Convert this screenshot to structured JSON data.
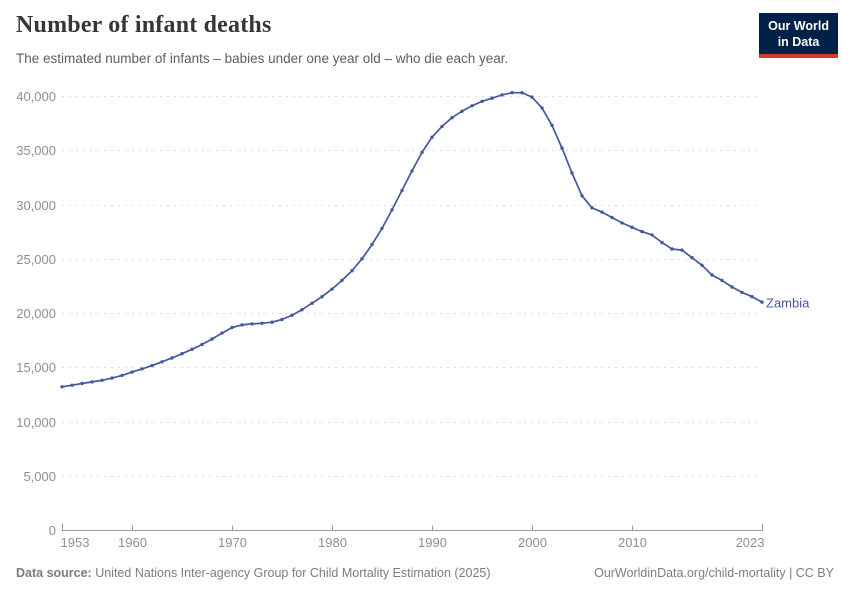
{
  "header": {
    "title": "Number of infant deaths",
    "subtitle": "The estimated number of infants – babies under one year old – who die each year.",
    "logo": {
      "line1": "Our World",
      "line2": "in Data"
    }
  },
  "footer": {
    "source_label": "Data source:",
    "source_text": " United Nations Inter-agency Group for Child Mortality Estimation (2025)",
    "link_text": "OurWorldinData.org/child-mortality | CC BY"
  },
  "colors": {
    "line": "#44589c",
    "label": "#44589c",
    "grid": "#dcdcdc",
    "axis": "#9a9a9a",
    "tick_label": "#8f8f8f",
    "title": "#363636",
    "subtitle": "#5e5e5e",
    "footer": "#7d7d7d",
    "logo_bg": "#002147",
    "logo_bar": "#d6392f"
  },
  "chart_data": {
    "type": "line",
    "title": "Number of infant deaths",
    "xlabel": "",
    "ylabel": "",
    "xlim": [
      1953,
      2023
    ],
    "ylim": [
      0,
      40000
    ],
    "grid": "horizontal-dashed",
    "legend_position": "end-of-line-label",
    "x_ticks": [
      1953,
      1960,
      1970,
      1980,
      1990,
      2000,
      2010,
      2023
    ],
    "x_tick_labels": [
      "1953",
      "1960",
      "1970",
      "1980",
      "1990",
      "2000",
      "2010",
      "2023"
    ],
    "y_ticks": [
      0,
      5000,
      10000,
      15000,
      20000,
      25000,
      30000,
      35000,
      40000
    ],
    "y_tick_labels": [
      "0",
      "5,000",
      "10,000",
      "15,000",
      "20,000",
      "25,000",
      "30,000",
      "35,000",
      "40,000"
    ],
    "series": [
      {
        "name": "Zambia",
        "color": "#44589c",
        "x": [
          1953,
          1954,
          1955,
          1956,
          1957,
          1958,
          1959,
          1960,
          1961,
          1962,
          1963,
          1964,
          1965,
          1966,
          1967,
          1968,
          1969,
          1970,
          1971,
          1972,
          1973,
          1974,
          1975,
          1976,
          1977,
          1978,
          1979,
          1980,
          1981,
          1982,
          1983,
          1984,
          1985,
          1986,
          1987,
          1988,
          1989,
          1990,
          1991,
          1992,
          1993,
          1994,
          1995,
          1996,
          1997,
          1998,
          1999,
          2000,
          2001,
          2002,
          2003,
          2004,
          2005,
          2006,
          2007,
          2008,
          2009,
          2010,
          2011,
          2012,
          2013,
          2014,
          2015,
          2016,
          2017,
          2018,
          2019,
          2020,
          2021,
          2022,
          2023
        ],
        "values": [
          13200,
          13350,
          13500,
          13650,
          13800,
          14000,
          14250,
          14550,
          14850,
          15150,
          15500,
          15850,
          16250,
          16650,
          17100,
          17600,
          18150,
          18650,
          18900,
          19000,
          19050,
          19150,
          19400,
          19800,
          20300,
          20900,
          21500,
          22200,
          23000,
          23900,
          25000,
          26300,
          27800,
          29500,
          31300,
          33100,
          34800,
          36200,
          37200,
          38000,
          38600,
          39100,
          39500,
          39800,
          40100,
          40300,
          40300,
          39900,
          38900,
          37300,
          35200,
          32900,
          30800,
          29700,
          29300,
          28800,
          28300,
          27900,
          27500,
          27200,
          26500,
          25900,
          25800,
          25100,
          24400,
          23500,
          23000,
          22400,
          21900,
          21500,
          21000
        ]
      }
    ]
  }
}
